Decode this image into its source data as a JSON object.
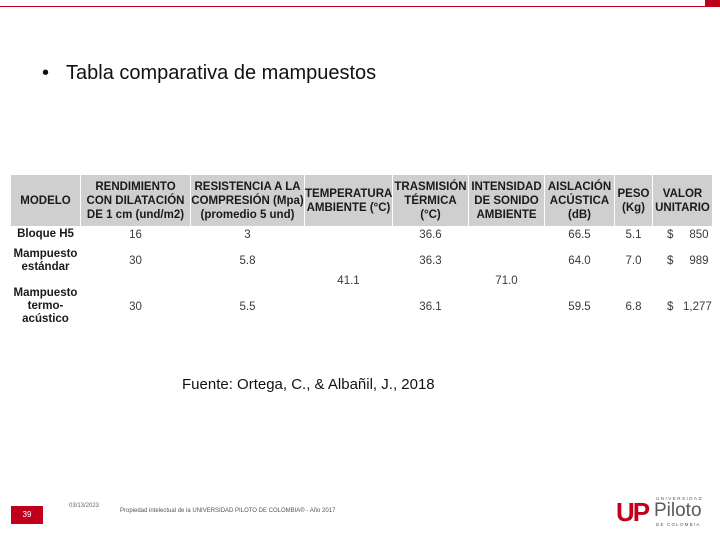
{
  "slide": {
    "bullet": "Tabla comparativa de mampuestos",
    "source": "Fuente: Ortega, C., & Albañil, J., 2018",
    "page_number": "39",
    "date": "03/13/2023",
    "footer": "Propiedad intelectual de la UNIVERSIDAD PILOTO DE COLOMBIA® - Año 2017"
  },
  "logo": {
    "mark": "UP",
    "top": "UNIVERSIDAD",
    "name": "Piloto",
    "bottom": "DE COLOMBIA"
  },
  "table": {
    "headers": [
      "MODELO",
      "RENDIMIENTO CON DILATACIÓN DE 1 cm (und/m2)",
      "RESISTENCIA A LA COMPRESIÓN (Mpa) (promedio 5 und)",
      "TEMPERATURA AMBIENTE (°C)",
      "TRASMISIÓN TÉRMICA (°C)",
      "INTENSIDAD DE SONIDO AMBIENTE",
      "AISLACIÓN ACÚSTICA (dB)",
      "PESO (Kg)",
      "VALOR UNITARIO"
    ],
    "shared_temperature": "41.1",
    "shared_sound": "71.0",
    "rows": [
      {
        "model": "Bloque H5",
        "rendimiento": "16",
        "resistencia": "3",
        "trasmision": "36.6",
        "aislacion": "66.5",
        "peso": "5.1",
        "currency": "$",
        "valor": "850"
      },
      {
        "model": "Mampuesto estándar",
        "rendimiento": "30",
        "resistencia": "5.8",
        "trasmision": "36.3",
        "aislacion": "64.0",
        "peso": "7.0",
        "currency": "$",
        "valor": "989"
      },
      {
        "model": "Mampuesto termo-acústico",
        "rendimiento": "30",
        "resistencia": "5.5",
        "trasmision": "36.1",
        "aislacion": "59.5",
        "peso": "6.8",
        "currency": "$",
        "valor": "1,277"
      }
    ]
  }
}
